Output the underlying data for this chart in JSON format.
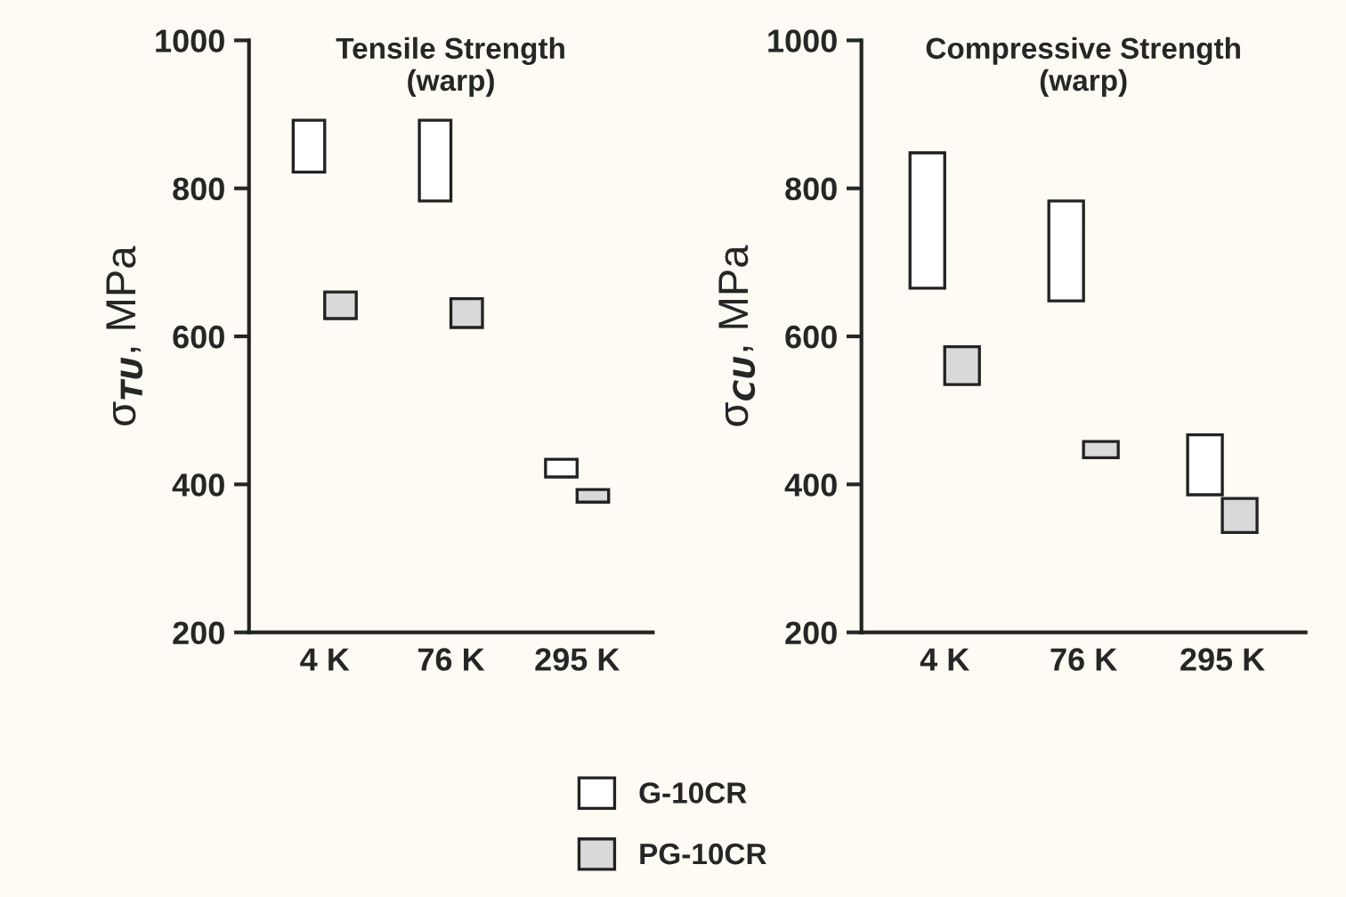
{
  "chart_data": [
    {
      "type": "bar",
      "title": "Tensile Strength\n(warp)",
      "ylabel": "σ$_{TU}$, MPa",
      "categories": [
        "4 K",
        "76 K",
        "295 K"
      ],
      "ylim": [
        200,
        1000
      ],
      "yticks": [
        200,
        400,
        600,
        800,
        1000
      ],
      "grid": false,
      "legend": "bottom",
      "series": [
        {
          "name": "G-10CR",
          "color": "#ffffff",
          "values": [
            70,
            109,
            24
          ],
          "base": [
            822,
            783,
            410
          ]
        },
        {
          "name": "PG-10CR",
          "color": "#d9d9d9",
          "values": [
            36,
            39,
            17
          ],
          "base": [
            624,
            612,
            376
          ]
        }
      ]
    },
    {
      "type": "bar",
      "title": "Compressive Strength\n(warp)",
      "ylabel": "σ$_{CU}$, MPa",
      "categories": [
        "4 K",
        "76 K",
        "295 K"
      ],
      "ylim": [
        200,
        1000
      ],
      "yticks": [
        200,
        400,
        600,
        800,
        1000
      ],
      "grid": false,
      "series": [
        {
          "color": "#ffffff",
          "values": [
            183,
            135,
            81
          ],
          "base": [
            665,
            648,
            386
          ]
        },
        {
          "color": "#d9d9d9",
          "values": [
            51,
            22,
            46
          ],
          "base": [
            535,
            436,
            335
          ]
        }
      ]
    }
  ]
}
